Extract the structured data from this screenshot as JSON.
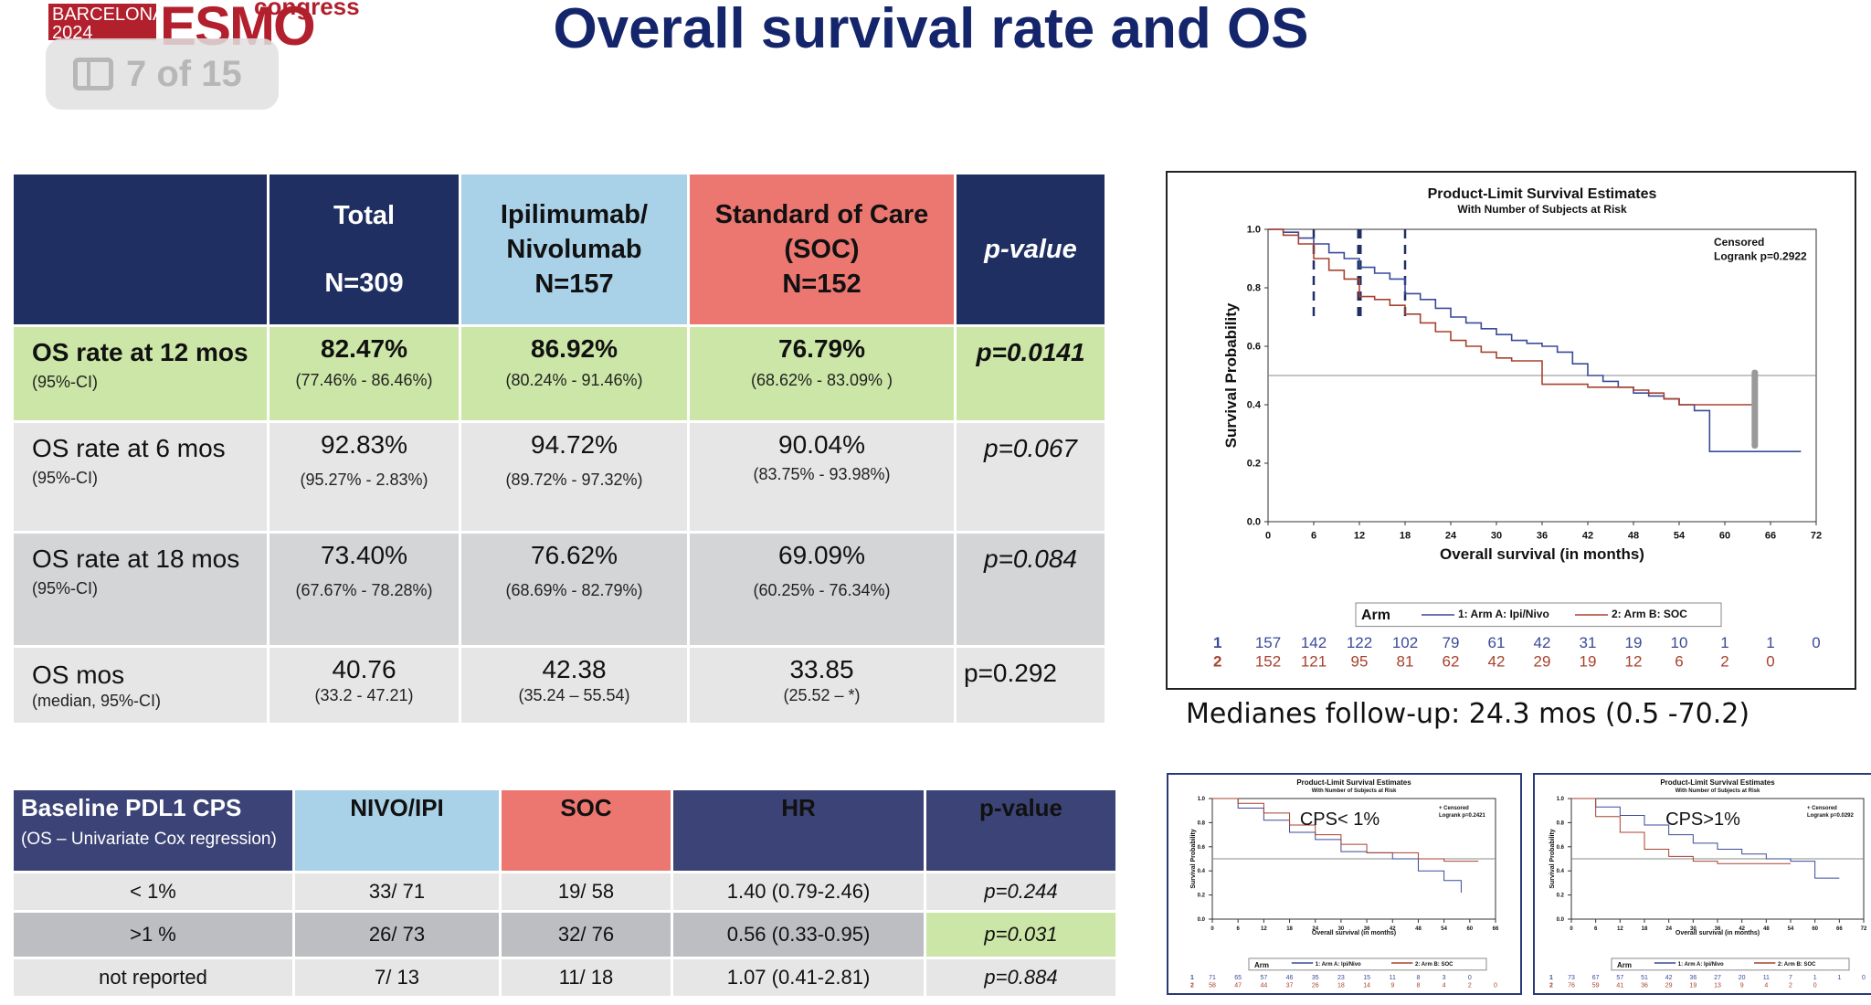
{
  "logo": {
    "line1": "BARCELONA",
    "line2": "2024",
    "brand": "ESMO",
    "word": "congress"
  },
  "page_badge": {
    "icon": "sidebar-icon",
    "text": "7 of 15"
  },
  "title": "Overall survival rate and OS",
  "survival_table": {
    "headers": [
      {
        "l1": "",
        "l2": "",
        "l3": ""
      },
      {
        "l1": "Total",
        "l2": "",
        "l3": "N=309"
      },
      {
        "l1": "Ipilimumab/",
        "l2": "Nivolumab",
        "l3": "N=157"
      },
      {
        "l1": "Standard of Care",
        "l2": "(SOC)",
        "l3": "N=152"
      },
      {
        "l1": "p-value",
        "l2": "",
        "l3": ""
      }
    ],
    "rows": [
      {
        "label": "OS rate at 12 mos",
        "sub": "(95%-CI)",
        "cells": [
          {
            "v": "82.47%",
            "ci": "(77.46% - 86.46%)"
          },
          {
            "v": "86.92%",
            "ci": "(80.24% - 91.46%)"
          },
          {
            "v": "76.79%",
            "ci": "(68.62% - 83.09% )"
          }
        ],
        "p": "p=0.0141"
      },
      {
        "label": "OS rate at 6 mos",
        "sub": "(95%-CI)",
        "cells": [
          {
            "v": "92.83%",
            "ci": "(95.27% - 2.83%)"
          },
          {
            "v": "94.72%",
            "ci": "(89.72% - 97.32%)"
          },
          {
            "v": "90.04%",
            "ci": "(83.75% - 93.98%)"
          }
        ],
        "p": "p=0.067"
      },
      {
        "label": "OS rate at 18 mos",
        "sub": "(95%-CI)",
        "cells": [
          {
            "v": "73.40%",
            "ci": "(67.67% - 78.28%)"
          },
          {
            "v": "76.62%",
            "ci": "(68.69% - 82.79%)"
          },
          {
            "v": "69.09%",
            "ci": "(60.25% - 76.34%)"
          }
        ],
        "p": "p=0.084"
      },
      {
        "label": "OS mos",
        "sub": "(median, 95%-CI)",
        "cells": [
          {
            "v": "40.76",
            "ci": "(33.2 - 47.21)"
          },
          {
            "v": "42.38",
            "ci": "(35.24 – 55.54)"
          },
          {
            "v": "33.85",
            "ci": "(25.52 – *)"
          }
        ],
        "p": "p=0.292"
      }
    ]
  },
  "pdl1_table": {
    "headers": {
      "label": "Baseline PDL1 CPS",
      "sublabel": "(OS – Univariate Cox regression)",
      "c1": "NIVO/IPI",
      "c2": "SOC",
      "c3": "HR",
      "c4": "p-value"
    },
    "rows": [
      {
        "cat": "< 1%",
        "nivo": "33/ 71",
        "soc": "19/ 58",
        "hr": "1.40 (0.79-2.46)",
        "p": "p=0.244"
      },
      {
        "cat": ">1 %",
        "nivo": "26/ 73",
        "soc": "32/ 76",
        "hr": "0.56 (0.33-0.95)",
        "p": "p=0.031"
      },
      {
        "cat": "not reported",
        "nivo": "7/ 13",
        "soc": "11/ 18",
        "hr": "1.07 (0.41-2.81)",
        "p": "p=0.884"
      }
    ]
  },
  "followup_text": "Medianes follow-up: 24.3 mos (0.5 -70.2)",
  "colors": {
    "navy": "#1f2f62",
    "blue": "#a9d1e8",
    "red": "#ec7670",
    "green": "#cbe6a6",
    "arm_a": "#3a4a9a",
    "arm_b": "#a8412e"
  },
  "chart_data": [
    {
      "type": "line",
      "title": "Product-Limit Survival Estimates",
      "subtitle": "With Number of Subjects at Risk",
      "xlabel": "Overall survival (in months)",
      "ylabel": "Survival Probability",
      "xlim": [
        0,
        72
      ],
      "ylim": [
        0,
        1.0
      ],
      "xticks": [
        "0",
        "6",
        "12",
        "18",
        "24",
        "30",
        "36",
        "42",
        "48",
        "54",
        "60",
        "66",
        "72"
      ],
      "yticks": [
        "0.0",
        "0.2",
        "0.4",
        "0.6",
        "0.8",
        "1.0"
      ],
      "legend_title": "Arm",
      "legend_labels": [
        "1: Arm A: Ipi/Nivo",
        "2: Arm B: SOC"
      ],
      "annot": [
        "Censored",
        "Logrank p=0.2922"
      ],
      "reference_line_y": 0.5,
      "series": [
        {
          "name": "1: Arm A: Ipi/Nivo",
          "x": [
            0,
            2,
            4,
            6,
            8,
            10,
            12,
            14,
            16,
            18,
            20,
            22,
            24,
            26,
            28,
            30,
            32,
            34,
            36,
            38,
            40,
            42,
            44,
            46,
            48,
            50,
            52,
            54,
            56,
            58,
            60,
            62,
            64,
            66,
            70
          ],
          "y": [
            1.0,
            0.99,
            0.97,
            0.95,
            0.92,
            0.9,
            0.87,
            0.85,
            0.83,
            0.78,
            0.76,
            0.73,
            0.7,
            0.68,
            0.66,
            0.64,
            0.62,
            0.61,
            0.6,
            0.58,
            0.54,
            0.5,
            0.48,
            0.46,
            0.44,
            0.43,
            0.42,
            0.4,
            0.38,
            0.24,
            0.24,
            0.24,
            0.24,
            0.24,
            0.24
          ]
        },
        {
          "name": "2: Arm B: SOC",
          "x": [
            0,
            2,
            4,
            6,
            8,
            10,
            12,
            14,
            16,
            18,
            20,
            22,
            24,
            26,
            28,
            30,
            32,
            34,
            36,
            38,
            40,
            42,
            44,
            46,
            48,
            50,
            52,
            54,
            56,
            58,
            60,
            62,
            64
          ],
          "y": [
            1.0,
            0.98,
            0.95,
            0.9,
            0.86,
            0.83,
            0.77,
            0.76,
            0.74,
            0.71,
            0.68,
            0.65,
            0.62,
            0.6,
            0.58,
            0.56,
            0.55,
            0.55,
            0.47,
            0.47,
            0.47,
            0.46,
            0.46,
            0.46,
            0.45,
            0.44,
            0.42,
            0.4,
            0.4,
            0.4,
            0.4,
            0.4,
            0.4
          ]
        }
      ],
      "risk_table": {
        "row1": [
          "157",
          "142",
          "122",
          "102",
          "79",
          "61",
          "42",
          "31",
          "19",
          "10",
          "1",
          "1",
          "0"
        ],
        "row2": [
          "152",
          "121",
          "95",
          "81",
          "62",
          "42",
          "29",
          "19",
          "12",
          "6",
          "2",
          "0",
          ""
        ]
      }
    },
    {
      "type": "line",
      "title": "Product-Limit Survival Estimates",
      "subtitle": "With Number of Subjects at Risk",
      "label": "CPS< 1%",
      "annot": [
        "+ Censored",
        "Logrank p=0.2421"
      ],
      "xlabel": "Overall survival (in months)",
      "ylabel": "Survival Probability",
      "xlim": [
        0,
        66
      ],
      "ylim": [
        0,
        1.0
      ],
      "xticks": [
        "0",
        "6",
        "12",
        "18",
        "24",
        "30",
        "36",
        "42",
        "48",
        "54",
        "60",
        "66"
      ],
      "yticks": [
        "0.0",
        "0.2",
        "0.4",
        "0.6",
        "0.8",
        "1.0"
      ],
      "legend_title": "Arm",
      "legend_labels": [
        "1: Arm A: Ipi/Nivo",
        "2: Arm B: SOC"
      ],
      "series": [
        {
          "name": "1: Arm A: Ipi/Nivo",
          "x": [
            0,
            6,
            12,
            18,
            24,
            30,
            36,
            42,
            48,
            54,
            58
          ],
          "y": [
            1.0,
            0.92,
            0.82,
            0.72,
            0.66,
            0.56,
            0.55,
            0.5,
            0.4,
            0.32,
            0.22
          ]
        },
        {
          "name": "2: Arm B: SOC",
          "x": [
            0,
            6,
            12,
            18,
            24,
            30,
            36,
            42,
            48,
            54,
            60,
            62
          ],
          "y": [
            1.0,
            0.96,
            0.88,
            0.78,
            0.7,
            0.62,
            0.55,
            0.55,
            0.5,
            0.48,
            0.48,
            0.48
          ]
        }
      ],
      "risk_table": {
        "row1": [
          "71",
          "65",
          "57",
          "46",
          "35",
          "23",
          "15",
          "11",
          "8",
          "3",
          "0"
        ],
        "row2": [
          "58",
          "47",
          "44",
          "37",
          "26",
          "18",
          "14",
          "9",
          "8",
          "4",
          "2",
          "0"
        ]
      }
    },
    {
      "type": "line",
      "title": "Product-Limit Survival Estimates",
      "subtitle": "With Number of Subjects at Risk",
      "label": "CPS>1%",
      "annot": [
        "+ Censored",
        "Logrank p=0.0292"
      ],
      "xlabel": "Overall survival (in months)",
      "ylabel": "Survival Probability",
      "xlim": [
        0,
        72
      ],
      "ylim": [
        0,
        1.0
      ],
      "xticks": [
        "0",
        "6",
        "12",
        "18",
        "24",
        "30",
        "36",
        "42",
        "48",
        "54",
        "60",
        "66",
        "72"
      ],
      "yticks": [
        "0.0",
        "0.2",
        "0.4",
        "0.6",
        "0.8",
        "1.0"
      ],
      "legend_title": "Arm",
      "legend_labels": [
        "1: Arm A: Ipi/Nivo",
        "2: Arm B: SOC"
      ],
      "series": [
        {
          "name": "1: Arm A: Ipi/Nivo",
          "x": [
            0,
            6,
            12,
            18,
            24,
            30,
            36,
            42,
            48,
            54,
            60,
            66
          ],
          "y": [
            1.0,
            0.93,
            0.86,
            0.78,
            0.7,
            0.63,
            0.58,
            0.54,
            0.5,
            0.48,
            0.34,
            0.34
          ]
        },
        {
          "name": "2: Arm B: SOC",
          "x": [
            0,
            6,
            12,
            18,
            24,
            30,
            36,
            42,
            48,
            54
          ],
          "y": [
            1.0,
            0.85,
            0.72,
            0.58,
            0.52,
            0.48,
            0.46,
            0.46,
            0.46,
            0.46
          ]
        }
      ],
      "risk_table": {
        "row1": [
          "73",
          "67",
          "57",
          "51",
          "42",
          "36",
          "27",
          "20",
          "11",
          "7",
          "1",
          "1",
          "0"
        ],
        "row2": [
          "76",
          "59",
          "41",
          "36",
          "29",
          "19",
          "13",
          "9",
          "4",
          "2",
          "0",
          ""
        ]
      }
    }
  ]
}
